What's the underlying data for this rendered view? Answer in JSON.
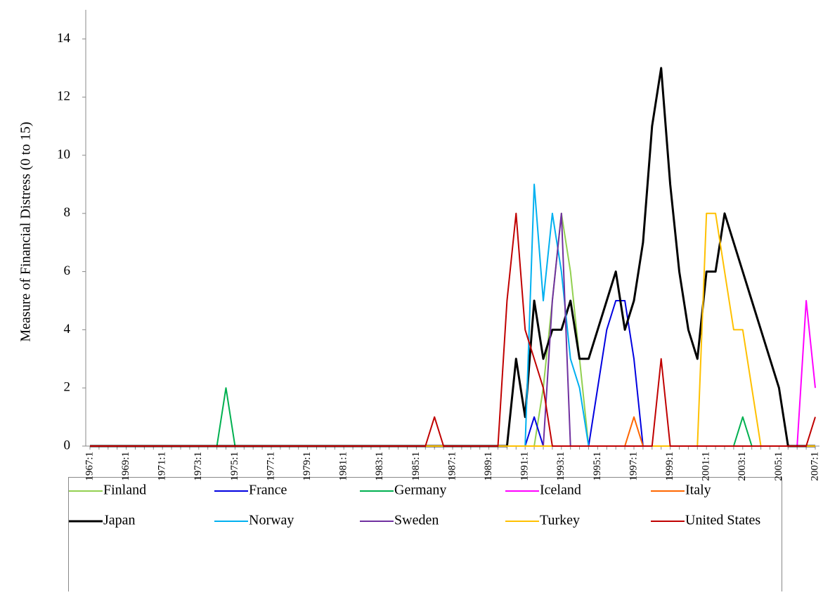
{
  "chart_data": {
    "type": "line",
    "y_axis_label": "Measure of Financial Distress (0 to 15)",
    "ylim": [
      0,
      15
    ],
    "yticks": [
      0,
      2,
      4,
      6,
      8,
      10,
      12,
      14
    ],
    "grid": false,
    "legend_position": "bottom",
    "categories": [
      "1967:1",
      null,
      null,
      null,
      "1969:1",
      null,
      null,
      null,
      "1971:1",
      null,
      null,
      null,
      "1973:1",
      null,
      null,
      null,
      "1975:1",
      null,
      null,
      null,
      "1977:1",
      null,
      null,
      null,
      "1979:1",
      null,
      null,
      null,
      "1981:1",
      null,
      null,
      null,
      "1983:1",
      null,
      null,
      null,
      "1985:1",
      null,
      null,
      null,
      "1987:1",
      null,
      null,
      null,
      "1989:1",
      null,
      null,
      null,
      "1991:1",
      null,
      null,
      null,
      "1993:1",
      null,
      null,
      null,
      "1995:1",
      null,
      null,
      null,
      "1997:1",
      null,
      null,
      null,
      "1999:1",
      null,
      null,
      null,
      "2001:1",
      null,
      null,
      null,
      "2003:1",
      null,
      null,
      null,
      "2005:1",
      null,
      null,
      null,
      "2007:1"
    ],
    "series": [
      {
        "name": "Finland",
        "color": "#92d050",
        "values": [
          0,
          0,
          0,
          0,
          0,
          0,
          0,
          0,
          0,
          0,
          0,
          0,
          0,
          0,
          0,
          0,
          0,
          0,
          0,
          0,
          0,
          0,
          0,
          0,
          0,
          0,
          0,
          0,
          0,
          0,
          0,
          0,
          0,
          0,
          0,
          0,
          0,
          0,
          0,
          0,
          0,
          0,
          0,
          0,
          0,
          0,
          0,
          0,
          0,
          0,
          2,
          5,
          8,
          6,
          3,
          0,
          0,
          0,
          0,
          0,
          0,
          0,
          0,
          0,
          0,
          0,
          0,
          0,
          0,
          0,
          0,
          0,
          0,
          0,
          0,
          0,
          0,
          0,
          0,
          0,
          0
        ]
      },
      {
        "name": "France",
        "color": "#0000e0",
        "values": [
          0,
          0,
          0,
          0,
          0,
          0,
          0,
          0,
          0,
          0,
          0,
          0,
          0,
          0,
          0,
          0,
          0,
          0,
          0,
          0,
          0,
          0,
          0,
          0,
          0,
          0,
          0,
          0,
          0,
          0,
          0,
          0,
          0,
          0,
          0,
          0,
          0,
          0,
          0,
          0,
          0,
          0,
          0,
          0,
          0,
          0,
          0,
          0,
          0,
          1,
          0,
          0,
          0,
          0,
          0,
          0,
          2,
          4,
          5,
          5,
          3,
          0,
          0,
          0,
          0,
          0,
          0,
          0,
          0,
          0,
          0,
          0,
          0,
          0,
          0,
          0,
          0,
          0,
          0,
          0,
          0
        ]
      },
      {
        "name": "Germany",
        "color": "#00b050",
        "values": [
          0,
          0,
          0,
          0,
          0,
          0,
          0,
          0,
          0,
          0,
          0,
          0,
          0,
          0,
          0,
          2,
          0,
          0,
          0,
          0,
          0,
          0,
          0,
          0,
          0,
          0,
          0,
          0,
          0,
          0,
          0,
          0,
          0,
          0,
          0,
          0,
          0,
          0,
          0,
          0,
          0,
          0,
          0,
          0,
          0,
          0,
          0,
          0,
          0,
          0,
          0,
          0,
          0,
          0,
          0,
          0,
          0,
          0,
          0,
          0,
          0,
          0,
          0,
          0,
          0,
          0,
          0,
          0,
          0,
          0,
          0,
          0,
          1,
          0,
          0,
          0,
          0,
          0,
          0,
          0,
          0
        ]
      },
      {
        "name": "Iceland",
        "color": "#ff00ff",
        "values": [
          0,
          0,
          0,
          0,
          0,
          0,
          0,
          0,
          0,
          0,
          0,
          0,
          0,
          0,
          0,
          0,
          0,
          0,
          0,
          0,
          0,
          0,
          0,
          0,
          0,
          0,
          0,
          0,
          0,
          0,
          0,
          0,
          0,
          0,
          0,
          0,
          0,
          0,
          0,
          0,
          0,
          0,
          0,
          0,
          0,
          0,
          0,
          0,
          0,
          0,
          0,
          0,
          0,
          0,
          0,
          0,
          0,
          0,
          0,
          0,
          0,
          0,
          0,
          0,
          0,
          0,
          0,
          0,
          0,
          0,
          0,
          0,
          0,
          0,
          0,
          0,
          0,
          0,
          0,
          5,
          2
        ]
      },
      {
        "name": "Italy",
        "color": "#ff6600",
        "values": [
          0,
          0,
          0,
          0,
          0,
          0,
          0,
          0,
          0,
          0,
          0,
          0,
          0,
          0,
          0,
          0,
          0,
          0,
          0,
          0,
          0,
          0,
          0,
          0,
          0,
          0,
          0,
          0,
          0,
          0,
          0,
          0,
          0,
          0,
          0,
          0,
          0,
          0,
          0,
          0,
          0,
          0,
          0,
          0,
          0,
          0,
          0,
          0,
          0,
          0,
          0,
          0,
          0,
          0,
          0,
          0,
          0,
          0,
          0,
          0,
          1,
          0,
          0,
          0,
          0,
          0,
          0,
          0,
          0,
          0,
          0,
          0,
          0,
          0,
          0,
          0,
          0,
          0,
          0,
          0,
          0
        ]
      },
      {
        "name": "Japan",
        "color": "#000000",
        "width": 3,
        "values": [
          0,
          0,
          0,
          0,
          0,
          0,
          0,
          0,
          0,
          0,
          0,
          0,
          0,
          0,
          0,
          0,
          0,
          0,
          0,
          0,
          0,
          0,
          0,
          0,
          0,
          0,
          0,
          0,
          0,
          0,
          0,
          0,
          0,
          0,
          0,
          0,
          0,
          0,
          0,
          0,
          0,
          0,
          0,
          0,
          0,
          0,
          0,
          3,
          1,
          5,
          3,
          4,
          4,
          5,
          3,
          3,
          4,
          5,
          6,
          4,
          5,
          7,
          11,
          13,
          9,
          6,
          4,
          3,
          6,
          6,
          8,
          7,
          6,
          5,
          4,
          3,
          2,
          0,
          0,
          0,
          0
        ]
      },
      {
        "name": "Norway",
        "color": "#00b0f0",
        "values": [
          0,
          0,
          0,
          0,
          0,
          0,
          0,
          0,
          0,
          0,
          0,
          0,
          0,
          0,
          0,
          0,
          0,
          0,
          0,
          0,
          0,
          0,
          0,
          0,
          0,
          0,
          0,
          0,
          0,
          0,
          0,
          0,
          0,
          0,
          0,
          0,
          0,
          0,
          0,
          0,
          0,
          0,
          0,
          0,
          0,
          0,
          0,
          0,
          0,
          9,
          5,
          8,
          6,
          3,
          2,
          0,
          0,
          0,
          0,
          0,
          0,
          0,
          0,
          0,
          0,
          0,
          0,
          0,
          0,
          0,
          0,
          0,
          0,
          0,
          0,
          0,
          0,
          0,
          0,
          0,
          0
        ]
      },
      {
        "name": "Sweden",
        "color": "#7030a0",
        "values": [
          0,
          0,
          0,
          0,
          0,
          0,
          0,
          0,
          0,
          0,
          0,
          0,
          0,
          0,
          0,
          0,
          0,
          0,
          0,
          0,
          0,
          0,
          0,
          0,
          0,
          0,
          0,
          0,
          0,
          0,
          0,
          0,
          0,
          0,
          0,
          0,
          0,
          0,
          0,
          0,
          0,
          0,
          0,
          0,
          0,
          0,
          0,
          0,
          0,
          0,
          0,
          5,
          8,
          0,
          0,
          0,
          0,
          0,
          0,
          0,
          0,
          0,
          0,
          0,
          0,
          0,
          0,
          0,
          0,
          0,
          0,
          0,
          0,
          0,
          0,
          0,
          0,
          0,
          0,
          0,
          0
        ]
      },
      {
        "name": "Turkey",
        "color": "#ffc000",
        "values": [
          0,
          0,
          0,
          0,
          0,
          0,
          0,
          0,
          0,
          0,
          0,
          0,
          0,
          0,
          0,
          0,
          0,
          0,
          0,
          0,
          0,
          0,
          0,
          0,
          0,
          0,
          0,
          0,
          0,
          0,
          0,
          0,
          0,
          0,
          0,
          0,
          0,
          0,
          0,
          0,
          0,
          0,
          0,
          0,
          0,
          0,
          0,
          0,
          0,
          0,
          0,
          0,
          0,
          0,
          0,
          0,
          0,
          0,
          0,
          0,
          0,
          0,
          0,
          0,
          0,
          0,
          0,
          0,
          8,
          8,
          6,
          4,
          4,
          2,
          0,
          0,
          0,
          0,
          0,
          0,
          0
        ]
      },
      {
        "name": "United States",
        "color": "#c00000",
        "values": [
          0,
          0,
          0,
          0,
          0,
          0,
          0,
          0,
          0,
          0,
          0,
          0,
          0,
          0,
          0,
          0,
          0,
          0,
          0,
          0,
          0,
          0,
          0,
          0,
          0,
          0,
          0,
          0,
          0,
          0,
          0,
          0,
          0,
          0,
          0,
          0,
          0,
          0,
          1,
          0,
          0,
          0,
          0,
          0,
          0,
          0,
          5,
          8,
          4,
          3,
          2,
          0,
          0,
          0,
          0,
          0,
          0,
          0,
          0,
          0,
          0,
          0,
          0,
          3,
          0,
          0,
          0,
          0,
          0,
          0,
          0,
          0,
          0,
          0,
          0,
          0,
          0,
          0,
          0,
          0,
          1
        ]
      }
    ]
  }
}
